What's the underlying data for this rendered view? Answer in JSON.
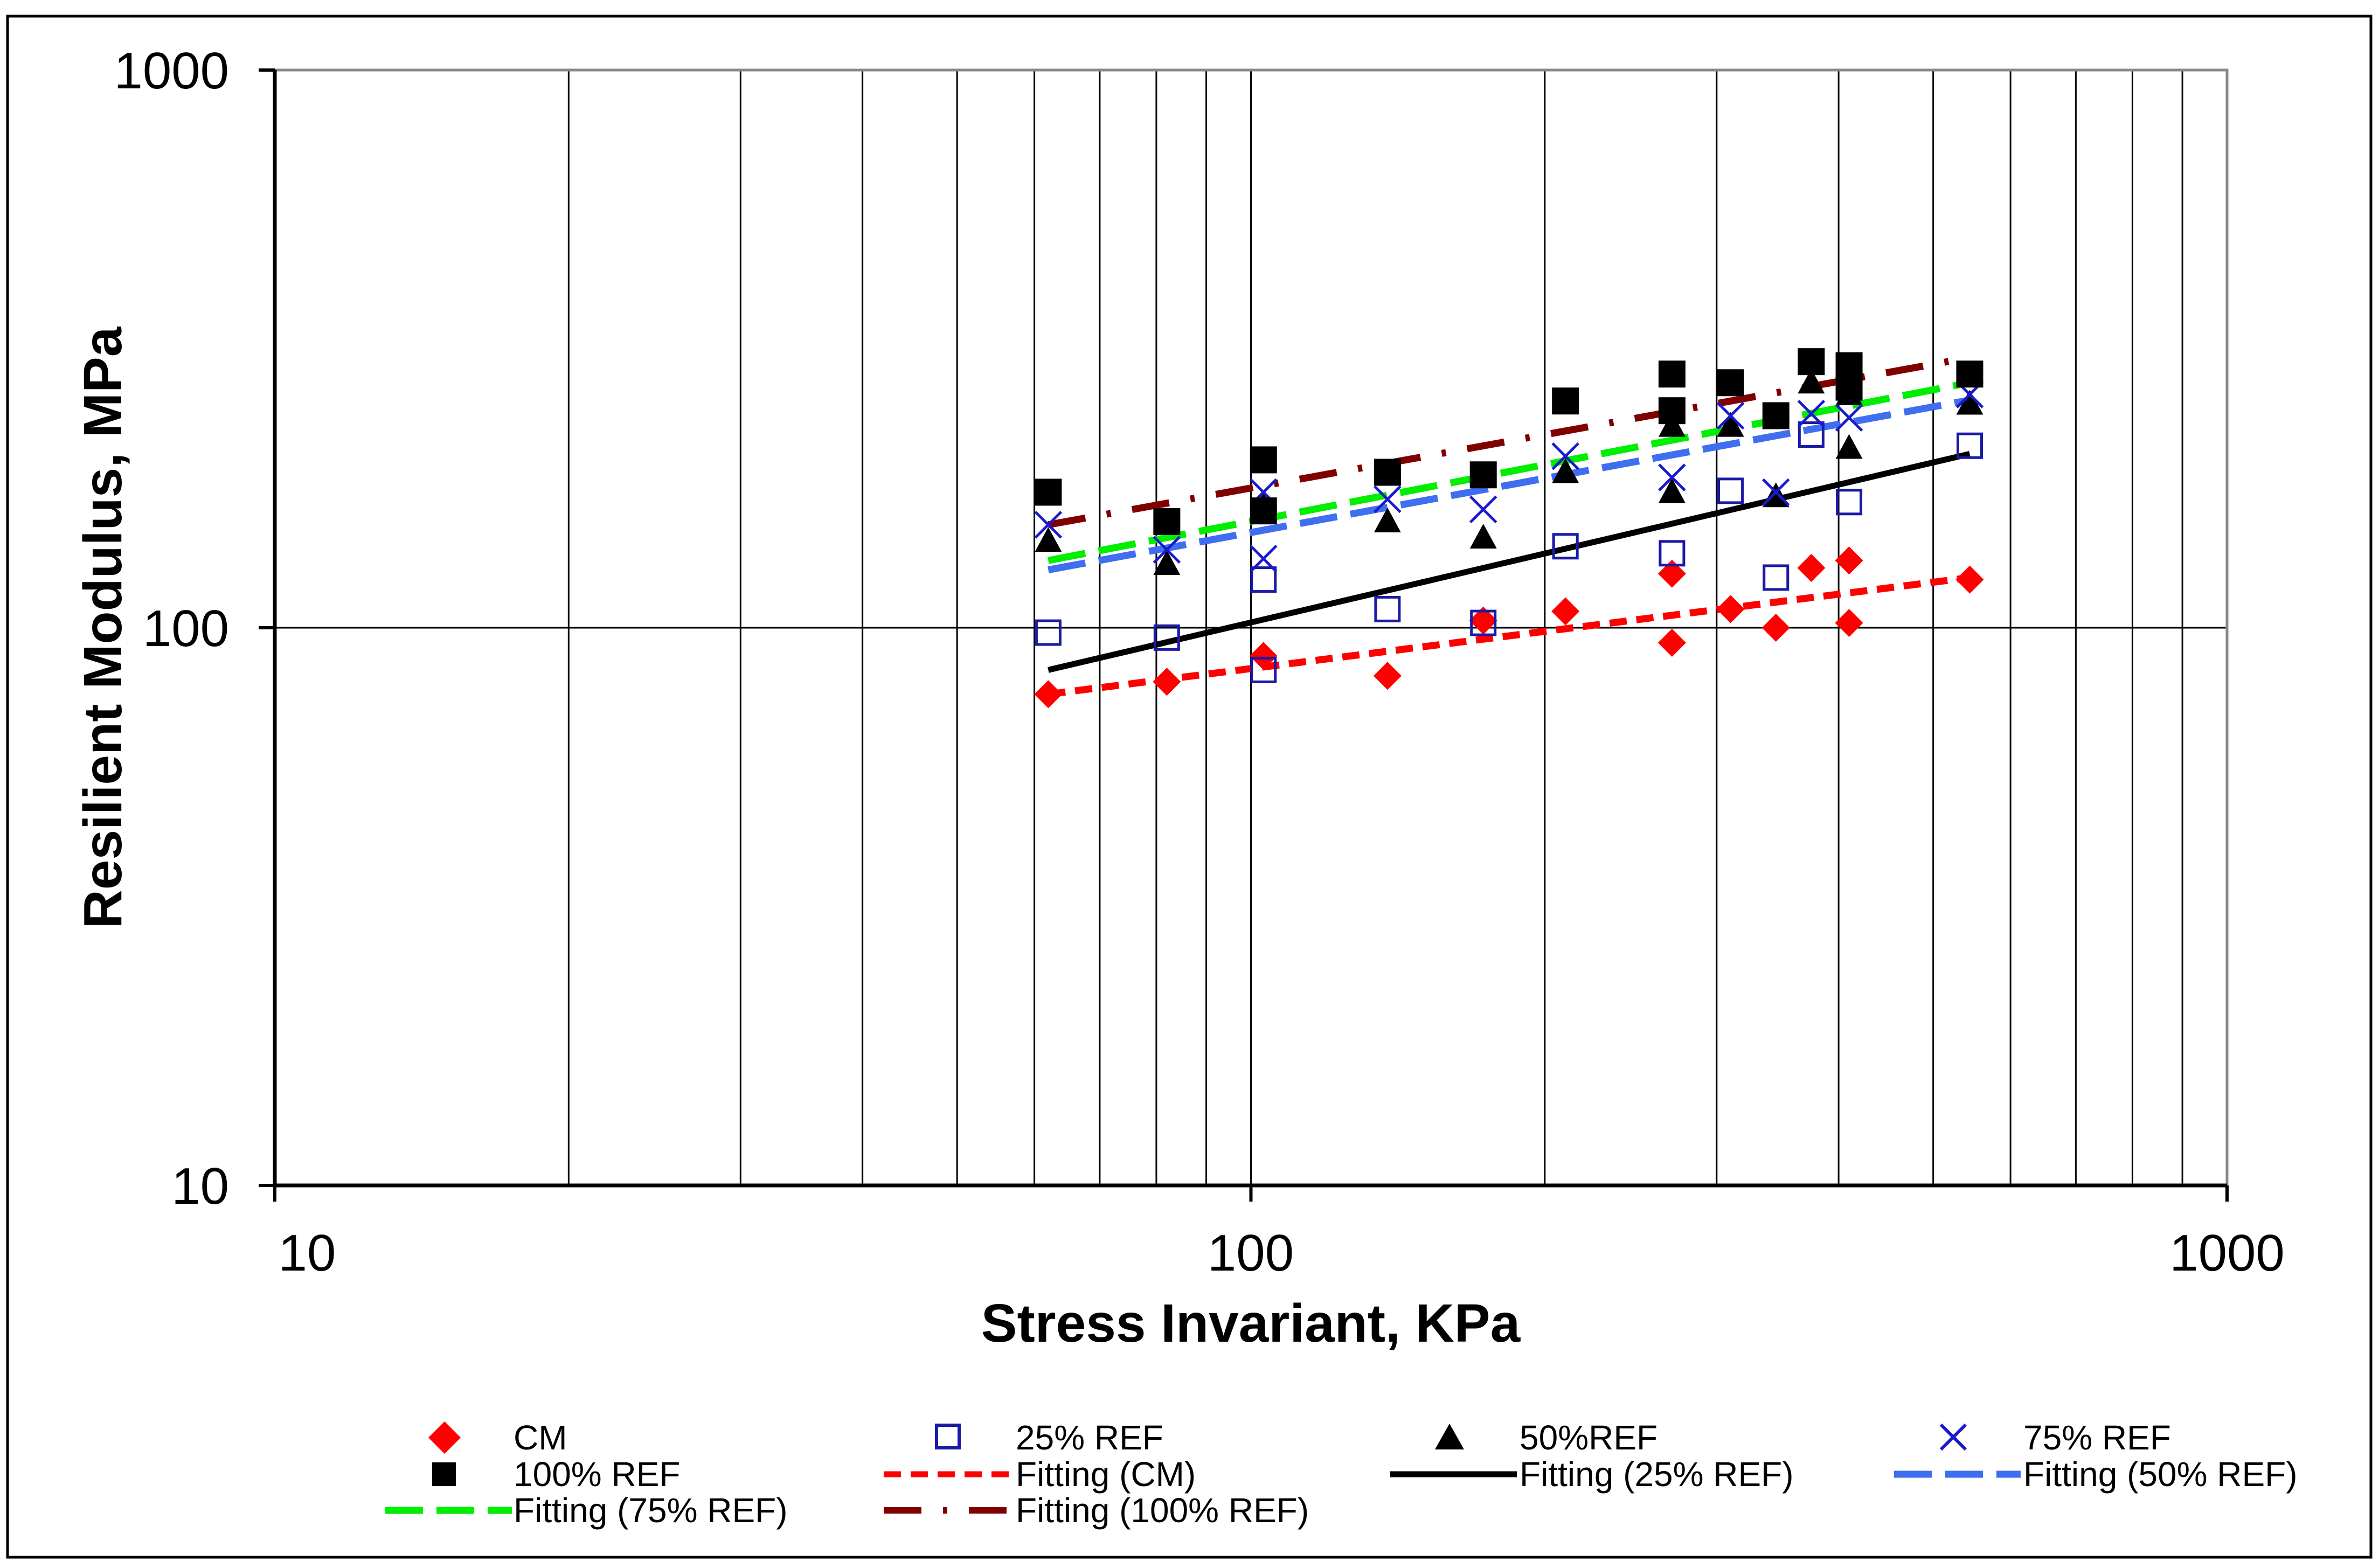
{
  "chart_data": {
    "type": "scatter",
    "xscale": "log",
    "yscale": "log",
    "xlabel": "Stress Invariant, KPa",
    "ylabel": "Resilient Modulus, MPa",
    "xlim": [
      10,
      1000
    ],
    "ylim": [
      10,
      1000
    ],
    "x_ticks": [
      "10",
      "100",
      "1000"
    ],
    "y_ticks": [
      "10",
      "100",
      "1000"
    ],
    "grid": true,
    "legend_position": "bottom",
    "series": [
      {
        "name": "CM",
        "kind": "points",
        "marker": "diamond",
        "color": "#ff0000",
        "points": [
          [
            62,
            76
          ],
          [
            82,
            80
          ],
          [
            103,
            89
          ],
          [
            138,
            82
          ],
          [
            173,
            103
          ],
          [
            210,
            107
          ],
          [
            270,
            94
          ],
          [
            270,
            125
          ],
          [
            310,
            108
          ],
          [
            345,
            100
          ],
          [
            375,
            128
          ],
          [
            410,
            102
          ],
          [
            410,
            132
          ],
          [
            545,
            122
          ]
        ]
      },
      {
        "name": "25% REF",
        "kind": "points",
        "marker": "square-open",
        "color": "#1a1aa6",
        "points": [
          [
            62,
            98
          ],
          [
            82,
            96
          ],
          [
            103,
            84
          ],
          [
            103,
            122
          ],
          [
            138,
            108
          ],
          [
            173,
            102
          ],
          [
            210,
            140
          ],
          [
            270,
            136
          ],
          [
            310,
            176
          ],
          [
            345,
            123
          ],
          [
            375,
            222
          ],
          [
            410,
            168
          ],
          [
            545,
            212
          ]
        ]
      },
      {
        "name": "50%REF",
        "kind": "points",
        "marker": "triangle",
        "color": "#000000",
        "points": [
          [
            62,
            143
          ],
          [
            82,
            130
          ],
          [
            103,
            165
          ],
          [
            138,
            155
          ],
          [
            173,
            145
          ],
          [
            210,
            190
          ],
          [
            270,
            175
          ],
          [
            270,
            230
          ],
          [
            310,
            230
          ],
          [
            345,
            172
          ],
          [
            375,
            275
          ],
          [
            410,
            210
          ],
          [
            410,
            262
          ],
          [
            545,
            252
          ]
        ]
      },
      {
        "name": "75% REF",
        "kind": "points",
        "marker": "x",
        "color": "#1a1acc",
        "points": [
          [
            62,
            153
          ],
          [
            82,
            138
          ],
          [
            103,
            133
          ],
          [
            103,
            175
          ],
          [
            138,
            170
          ],
          [
            173,
            163
          ],
          [
            210,
            203
          ],
          [
            270,
            186
          ],
          [
            310,
            240
          ],
          [
            345,
            175
          ],
          [
            375,
            242
          ],
          [
            410,
            238
          ],
          [
            545,
            262
          ]
        ]
      },
      {
        "name": "100% REF",
        "kind": "points",
        "marker": "square",
        "color": "#000000",
        "points": [
          [
            62,
            175
          ],
          [
            82,
            155
          ],
          [
            103,
            200
          ],
          [
            103,
            162
          ],
          [
            138,
            190
          ],
          [
            173,
            188
          ],
          [
            210,
            255
          ],
          [
            270,
            285
          ],
          [
            270,
            245
          ],
          [
            310,
            275
          ],
          [
            345,
            240
          ],
          [
            375,
            300
          ],
          [
            410,
            295
          ],
          [
            410,
            270
          ],
          [
            545,
            285
          ]
        ]
      },
      {
        "name": "Fitting (CM)",
        "kind": "line",
        "style": "short-dash",
        "color": "#ff0000",
        "points": [
          [
            62,
            76
          ],
          [
            545,
            123
          ]
        ]
      },
      {
        "name": "Fitting (25% REF)",
        "kind": "line",
        "style": "solid",
        "color": "#000000",
        "points": [
          [
            62,
            84
          ],
          [
            545,
            205
          ]
        ]
      },
      {
        "name": "Fitting (50% REF)",
        "kind": "line",
        "style": "long-dash",
        "color": "#3f6ef0",
        "points": [
          [
            62,
            127
          ],
          [
            545,
            256
          ]
        ]
      },
      {
        "name": "Fitting (75% REF)",
        "kind": "line",
        "style": "long-dash",
        "color": "#00ee00",
        "points": [
          [
            62,
            132
          ],
          [
            545,
            275
          ]
        ]
      },
      {
        "name": "Fitting (100% REF)",
        "kind": "line",
        "style": "dash-dot",
        "color": "#800000",
        "points": [
          [
            62,
            153
          ],
          [
            545,
            305
          ]
        ]
      }
    ]
  }
}
